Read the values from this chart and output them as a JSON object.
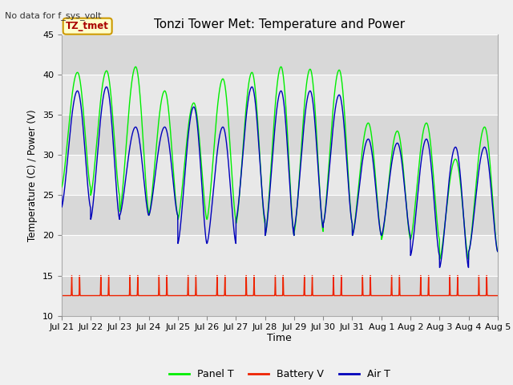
{
  "title": "Tonzi Tower Met: Temperature and Power",
  "top_left_text": "No data for f_sys_volt",
  "ylabel": "Temperature (C) / Power (V)",
  "xlabel": "Time",
  "ylim": [
    10,
    45
  ],
  "yticks": [
    10,
    15,
    20,
    25,
    30,
    35,
    40,
    45
  ],
  "xtick_labels": [
    "Jul 21",
    "Jul 22",
    "Jul 23",
    "Jul 24",
    "Jul 25",
    "Jul 26",
    "Jul 27",
    "Jul 28",
    "Jul 29",
    "Jul 30",
    "Jul 31",
    "Aug 1",
    "Aug 2",
    "Aug 3",
    "Aug 4",
    "Aug 5"
  ],
  "legend_entries": [
    "Panel T",
    "Battery V",
    "Air T"
  ],
  "panel_t_color": "#00ee00",
  "battery_v_color": "#ee2200",
  "air_t_color": "#0000bb",
  "annotation_text": "TZ_tmet",
  "annotation_color": "#aa0000",
  "annotation_bg": "#ffffcc",
  "annotation_border": "#cc9900",
  "fig_bg": "#f0f0f0",
  "plot_bg": "#e8e8e8",
  "grid_color": "#ffffff",
  "panel_peaks": [
    40.3,
    40.5,
    41.0,
    38.0,
    36.5,
    39.5,
    40.3,
    41.0,
    40.7,
    40.6,
    34.0,
    33.0,
    34.0,
    29.5,
    33.5
  ],
  "panel_troughs": [
    26.0,
    25.0,
    23.0,
    22.5,
    22.0,
    22.0,
    21.5,
    20.0,
    20.5,
    21.5,
    20.0,
    19.5,
    19.5,
    17.0,
    18.0
  ],
  "air_peaks": [
    38.0,
    38.5,
    33.5,
    33.5,
    36.0,
    33.5,
    38.5,
    38.0,
    38.0,
    37.5,
    32.0,
    31.5,
    32.0,
    31.0,
    31.0
  ],
  "air_troughs": [
    23.5,
    22.0,
    22.5,
    22.5,
    19.0,
    19.0,
    22.0,
    20.0,
    21.0,
    21.5,
    20.0,
    20.0,
    17.5,
    16.0,
    18.0
  ],
  "batt_base": 12.5,
  "batt_peak": 15.0
}
